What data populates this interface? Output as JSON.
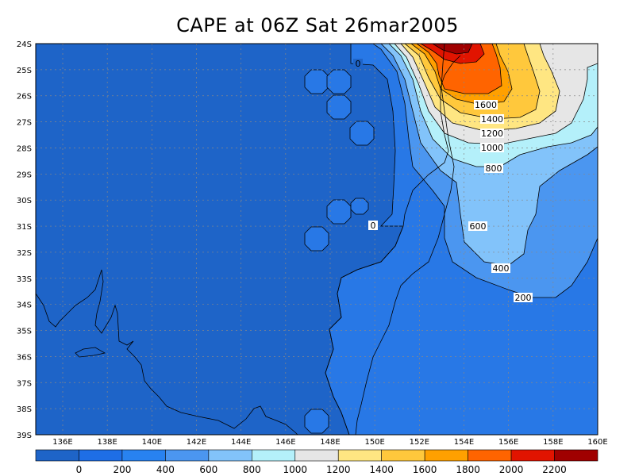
{
  "title": "CAPE at 06Z Sat 26mar2005",
  "map": {
    "lat_labels": [
      "24S",
      "25S",
      "26S",
      "27S",
      "28S",
      "29S",
      "30S",
      "31S",
      "32S",
      "33S",
      "34S",
      "35S",
      "36S",
      "37S",
      "38S",
      "39S"
    ],
    "lon_labels": [
      "136E",
      "138E",
      "140E",
      "142E",
      "144E",
      "146E",
      "148E",
      "150E",
      "152E",
      "154E",
      "156E",
      "158E",
      "160E"
    ],
    "contour_labels": [
      "0",
      "0",
      "200",
      "400",
      "600",
      "800",
      "1000",
      "1200",
      "1400",
      "1600"
    ],
    "colors": {
      "c0": "#1e64c8",
      "c200": "#2878e6",
      "c400": "#4b96f0",
      "c600": "#82c3fa",
      "c800": "#b4f0fa",
      "c1000": "#e6e6e6",
      "c1200": "#ffe682",
      "c1400": "#ffc83c",
      "c1600": "#ffa000",
      "c1800": "#ff6400",
      "c2000": "#e11400",
      "c2200": "#a00000"
    }
  },
  "colorbar": {
    "labels": [
      "0",
      "200",
      "400",
      "600",
      "800",
      "1000",
      "1200",
      "1400",
      "1600",
      "1800",
      "2000",
      "2200"
    ],
    "colors": [
      "#1e64c8",
      "#1e6ee6",
      "#2882f0",
      "#4b96f0",
      "#82c3fa",
      "#b4f0fa",
      "#e6e6e6",
      "#ffe682",
      "#ffc83c",
      "#ffa000",
      "#ff6400",
      "#e11400",
      "#a00000"
    ]
  }
}
